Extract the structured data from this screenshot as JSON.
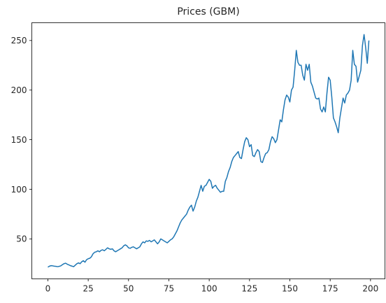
{
  "chart_data": {
    "type": "line",
    "title": "Prices (GBM)",
    "xlabel": "",
    "ylabel": "",
    "xlim": [
      -9.95,
      208.95
    ],
    "ylim": [
      9.7,
      267.9
    ],
    "xticks": [
      0,
      25,
      50,
      75,
      100,
      125,
      150,
      175,
      200
    ],
    "yticks": [
      50,
      100,
      150,
      200,
      250
    ],
    "grid": false,
    "line_color": "#1f77b4",
    "series": [
      {
        "values": [
          21.5,
          22.5,
          23.0,
          22.8,
          22.5,
          22.3,
          22.0,
          22.3,
          22.8,
          24.0,
          25.0,
          25.5,
          24.5,
          23.8,
          23.0,
          22.5,
          22.0,
          23.5,
          25.0,
          25.8,
          25.0,
          27.0,
          28.0,
          26.5,
          29.0,
          30.0,
          30.5,
          32.0,
          35.0,
          36.5,
          37.0,
          38.0,
          37.0,
          38.5,
          39.0,
          38.0,
          39.5,
          41.0,
          40.0,
          39.5,
          40.0,
          38.0,
          37.0,
          38.0,
          39.0,
          40.0,
          41.0,
          43.0,
          44.0,
          43.0,
          41.0,
          40.5,
          41.5,
          42.0,
          41.0,
          40.0,
          41.0,
          42.0,
          45.0,
          47.0,
          46.0,
          48.0,
          47.5,
          48.5,
          47.0,
          48.0,
          49.0,
          47.0,
          45.0,
          47.0,
          50.0,
          49.0,
          48.0,
          47.0,
          46.0,
          47.5,
          49.0,
          50.0,
          52.0,
          55.0,
          58.0,
          62.0,
          66.0,
          69.0,
          71.0,
          73.0,
          75.0,
          79.0,
          82.0,
          84.0,
          78.0,
          82.0,
          88.0,
          92.0,
          98.0,
          104.0,
          98.0,
          103.0,
          104.0,
          107.0,
          110.0,
          108.0,
          101.0,
          103.0,
          104.0,
          101.0,
          99.0,
          97.0,
          98.0,
          98.0,
          108.0,
          112.0,
          118.0,
          122.0,
          128.0,
          132.0,
          134.0,
          136.0,
          138.0,
          132.0,
          131.0,
          140.0,
          148.0,
          152.0,
          150.0,
          143.0,
          145.0,
          134.0,
          133.0,
          137.0,
          140.0,
          138.0,
          128.0,
          127.0,
          132.0,
          136.0,
          137.0,
          140.0,
          148.0,
          153.0,
          151.0,
          147.0,
          150.0,
          160.0,
          170.0,
          168.0,
          180.0,
          190.0,
          195.0,
          193.0,
          188.0,
          200.0,
          203.0,
          220.0,
          240.0,
          228.0,
          225.0,
          225.0,
          215.0,
          210.0,
          226.0,
          220.0,
          226.0,
          208.0,
          204.0,
          198.0,
          192.0,
          191.0,
          192.0,
          181.0,
          178.0,
          183.0,
          178.0,
          197.0,
          213.0,
          210.0,
          193.0,
          172.0,
          168.0,
          163.0,
          157.0,
          172.0,
          182.0,
          192.0,
          187.0,
          195.0,
          197.0,
          200.0,
          210.0,
          240.0,
          226.0,
          224.0,
          208.0,
          214.0,
          220.0,
          245.0,
          256.0,
          243.0,
          227.0,
          250.0
        ]
      }
    ]
  }
}
